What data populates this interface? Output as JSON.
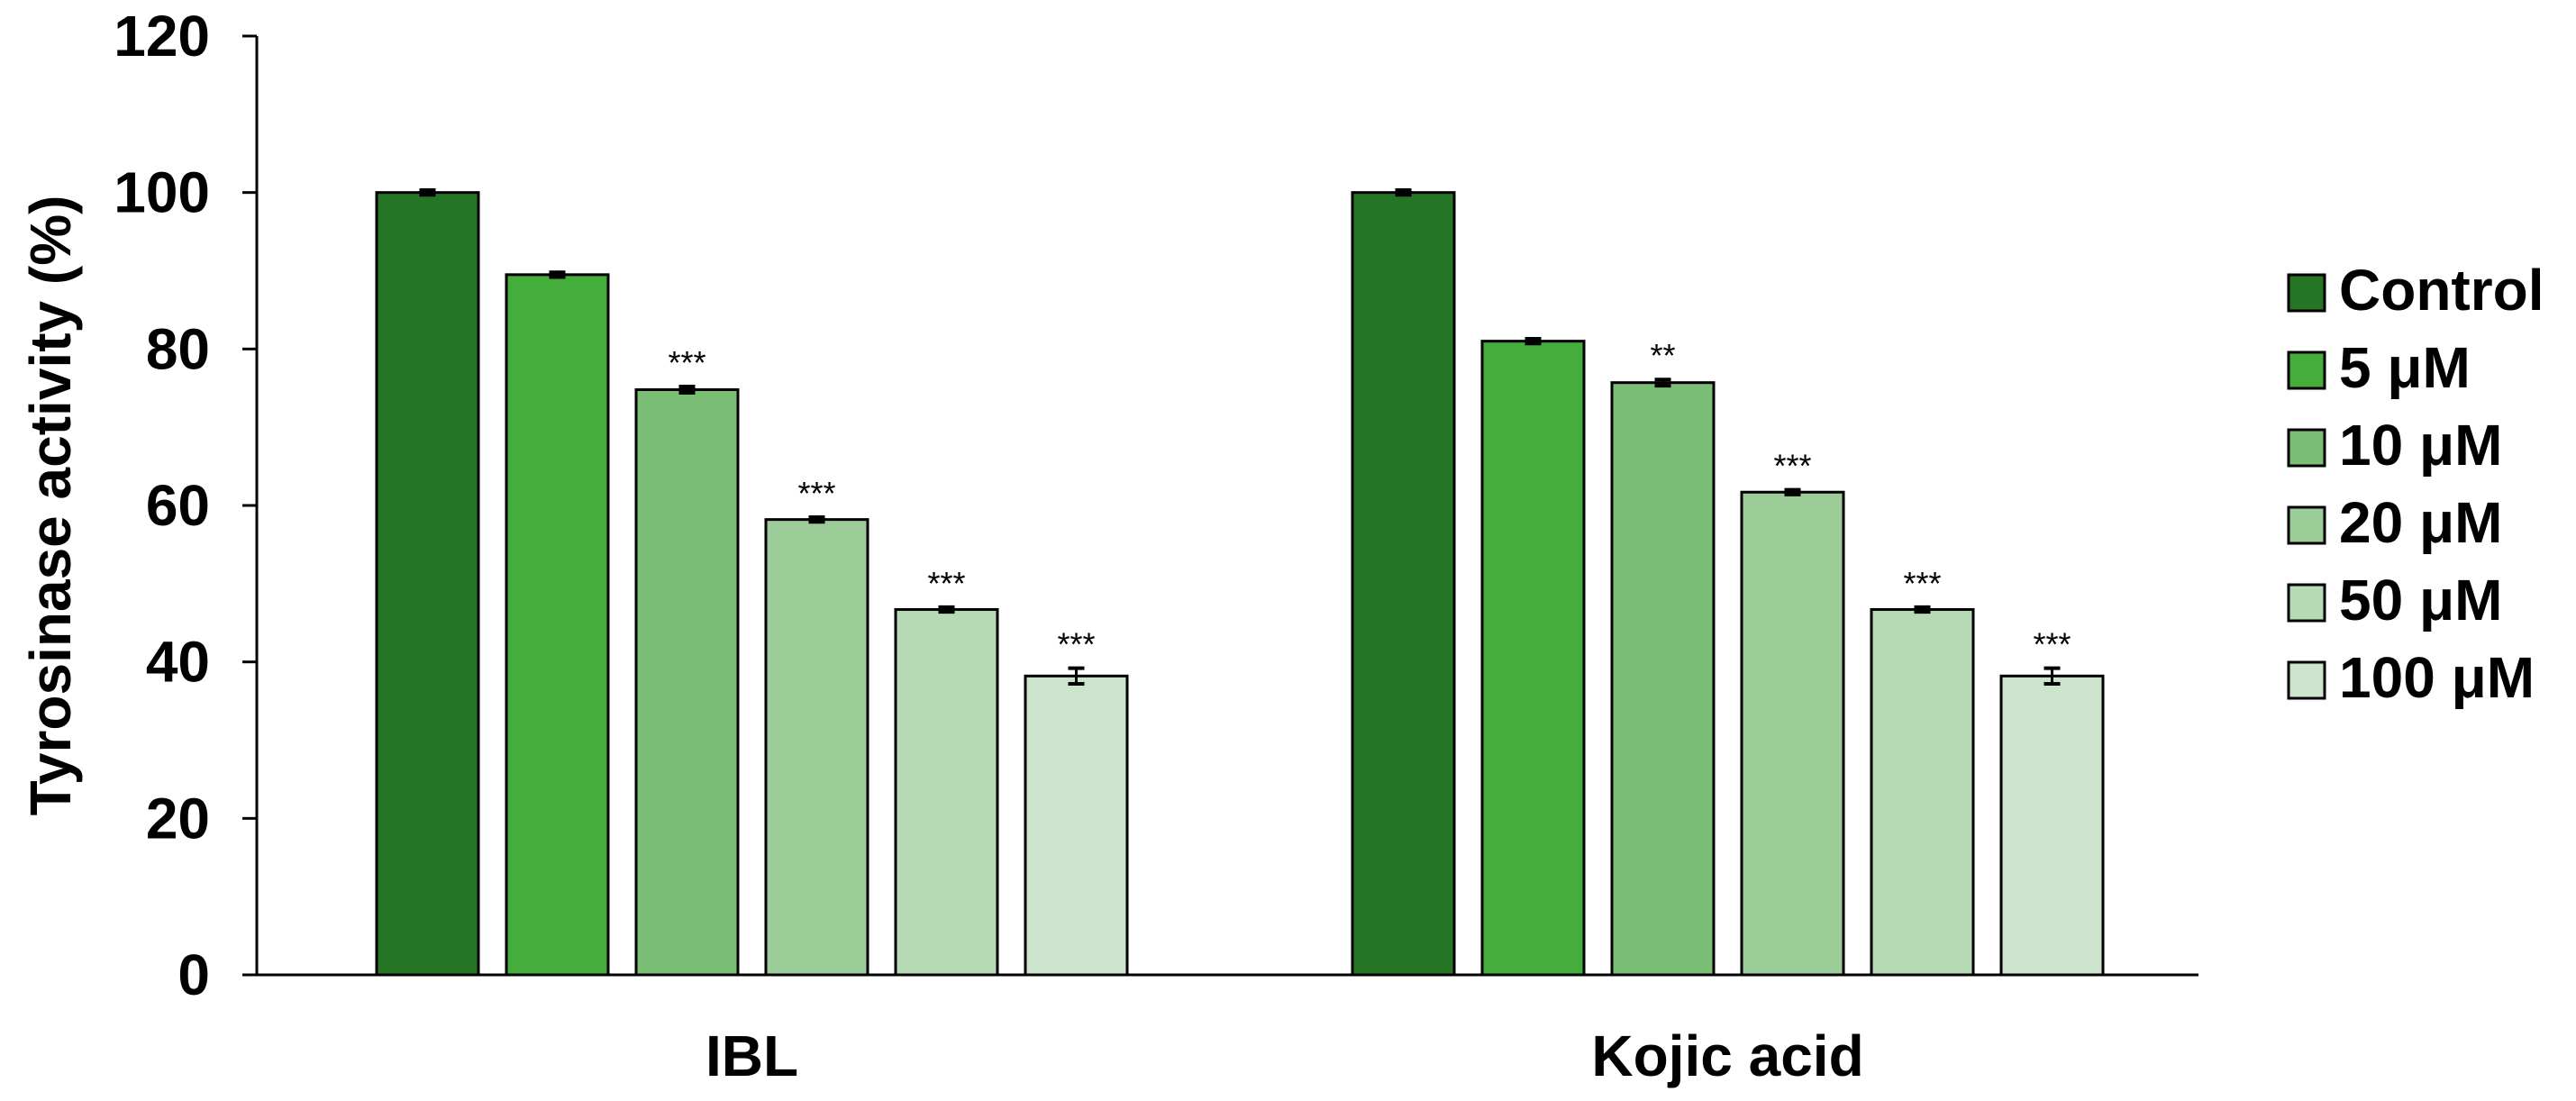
{
  "chart_data": {
    "type": "bar",
    "title": "",
    "xlabel": "",
    "ylabel": "Tyrosinase activity (%)",
    "ylim": [
      0,
      120
    ],
    "yticks": [
      0,
      20,
      40,
      60,
      80,
      100,
      120
    ],
    "grid": false,
    "legend_position": "right",
    "categories": [
      "IBL",
      "Kojic acid"
    ],
    "series": [
      {
        "name": "Control",
        "color": "#267524",
        "values": [
          100,
          100
        ],
        "errors": [
          0.3,
          0.3
        ],
        "significance": [
          "",
          ""
        ]
      },
      {
        "name": "5 μM",
        "color": "#44AD3B",
        "values": [
          89.5,
          81
        ],
        "errors": [
          0.3,
          0.3
        ],
        "significance": [
          "",
          ""
        ]
      },
      {
        "name": "10 μM",
        "color": "#7BBF77",
        "values": [
          74.8,
          75.7
        ],
        "errors": [
          0.4,
          0.4
        ],
        "significance": [
          "***",
          "**"
        ]
      },
      {
        "name": "20 μM",
        "color": "#9CCD98",
        "values": [
          58.2,
          61.7
        ],
        "errors": [
          0.3,
          0.3
        ],
        "significance": [
          "***",
          "***"
        ]
      },
      {
        "name": "50 μM",
        "color": "#B6DAB3",
        "values": [
          46.7,
          46.7
        ],
        "errors": [
          0.3,
          0.3
        ],
        "significance": [
          "***",
          "***"
        ]
      },
      {
        "name": "100 μM",
        "color": "#CCE4CC",
        "values": [
          38.2,
          38.2
        ],
        "errors": [
          1.0,
          1.0
        ],
        "significance": [
          "***",
          "***"
        ]
      }
    ]
  }
}
